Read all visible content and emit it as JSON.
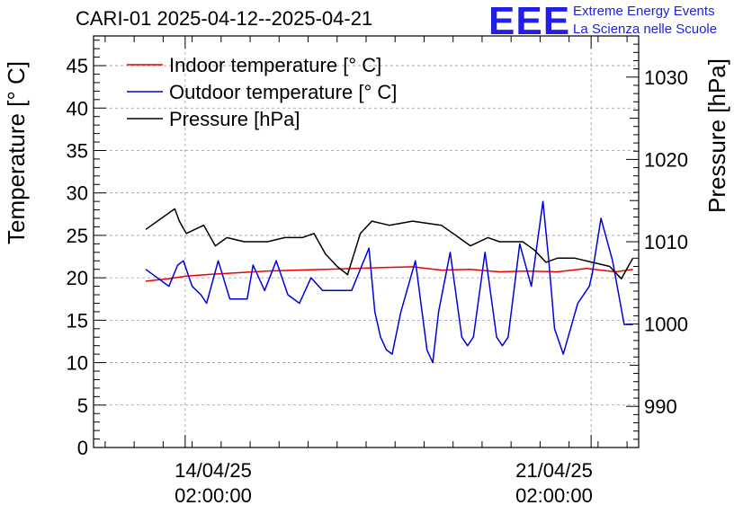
{
  "header": {
    "title": "CARI-01 2025-04-12--2025-04-21"
  },
  "logo": {
    "mark": "EEE",
    "line1": "Extreme Energy Events",
    "line2": "La Scienza nelle Scuole"
  },
  "axes": {
    "left_label": "Temperature [° C]",
    "right_label": "Pressure [hPa]",
    "x_ticks": [
      {
        "date": "14/04/25",
        "time": "02:00:00"
      },
      {
        "date": "21/04/25",
        "time": "02:00:00"
      }
    ]
  },
  "chart_data": {
    "type": "line",
    "title": "CARI-01 2025-04-12--2025-04-21",
    "xlabel": "",
    "ylabel": "Temperature [° C]",
    "y2label": "Pressure [hPa]",
    "xlim": [
      0,
      9.4
    ],
    "x_tick_values": [
      1.58,
      8.58
    ],
    "x_tick_labels": [
      "14/04/25 02:00:00",
      "21/04/25 02:00:00"
    ],
    "ylim": [
      0,
      48.5
    ],
    "y_ticks": [
      0,
      5,
      10,
      15,
      20,
      25,
      30,
      35,
      40,
      45
    ],
    "y2lim": [
      985,
      1035
    ],
    "y2_ticks": [
      990,
      1000,
      1010,
      1020,
      1030
    ],
    "grid": true,
    "legend_position": "top-left",
    "colors": {
      "indoor": "#ee0000",
      "outdoor": "#0000dd",
      "pressure": "#000000",
      "grid": "#999999"
    },
    "series": [
      {
        "name": "Indoor temperature [° C]",
        "axis": "left",
        "x": [
          0.9,
          1.3,
          1.6,
          2.0,
          2.5,
          3.0,
          3.5,
          4.0,
          4.5,
          5.0,
          5.5,
          6.0,
          6.5,
          7.0,
          7.5,
          8.0,
          8.5,
          9.0,
          9.3
        ],
        "y": [
          19.6,
          19.9,
          20.2,
          20.4,
          20.6,
          20.8,
          20.9,
          21.0,
          21.1,
          21.2,
          21.3,
          20.9,
          21.0,
          20.7,
          20.8,
          20.7,
          21.1,
          20.7,
          21.0
        ]
      },
      {
        "name": "Outdoor temperature [° C]",
        "axis": "left",
        "x": [
          0.9,
          1.3,
          1.45,
          1.55,
          1.7,
          1.85,
          1.95,
          2.15,
          2.35,
          2.65,
          2.75,
          2.95,
          3.15,
          3.35,
          3.55,
          3.75,
          3.95,
          4.15,
          4.45,
          4.75,
          4.85,
          4.95,
          5.05,
          5.15,
          5.3,
          5.55,
          5.75,
          5.85,
          5.95,
          6.15,
          6.35,
          6.45,
          6.55,
          6.75,
          6.95,
          7.05,
          7.15,
          7.35,
          7.55,
          7.75,
          7.85,
          7.95,
          8.1,
          8.35,
          8.55,
          8.6,
          8.75,
          8.95,
          9.15,
          9.3
        ],
        "y": [
          21.0,
          19.0,
          21.5,
          22.0,
          19.0,
          18.0,
          17.0,
          22.0,
          17.5,
          17.5,
          21.5,
          18.5,
          22.0,
          18.0,
          17.0,
          20.0,
          18.5,
          18.5,
          18.5,
          23.5,
          16.0,
          13.0,
          11.5,
          11.0,
          16.0,
          22.0,
          11.5,
          10.0,
          16.0,
          23.0,
          13.0,
          12.0,
          13.0,
          23.0,
          13.0,
          12.0,
          13.0,
          24.0,
          19.0,
          29.0,
          22.0,
          14.0,
          11.0,
          17.0,
          19.0,
          20.5,
          27.0,
          22.0,
          14.5,
          14.5
        ]
      },
      {
        "name": "Pressure [hPa]",
        "axis": "right",
        "x": [
          0.9,
          1.4,
          1.48,
          1.6,
          1.9,
          2.1,
          2.3,
          2.6,
          3.0,
          3.3,
          3.6,
          3.8,
          4.0,
          4.2,
          4.38,
          4.6,
          4.8,
          5.1,
          5.5,
          6.0,
          6.3,
          6.5,
          6.8,
          7.0,
          7.4,
          7.6,
          7.8,
          8.0,
          8.3,
          8.6,
          8.9,
          9.1,
          9.3
        ],
        "y": [
          1011.5,
          1014.0,
          1012.5,
          1011.0,
          1012.0,
          1009.5,
          1010.5,
          1010.0,
          1010.0,
          1010.5,
          1010.5,
          1011.0,
          1008.5,
          1007.0,
          1006.0,
          1011.0,
          1012.5,
          1012.0,
          1012.5,
          1012.0,
          1010.5,
          1009.5,
          1010.5,
          1010.0,
          1010.0,
          1009.0,
          1007.5,
          1008.0,
          1008.0,
          1007.5,
          1007.0,
          1005.5,
          1008.0
        ]
      }
    ]
  }
}
